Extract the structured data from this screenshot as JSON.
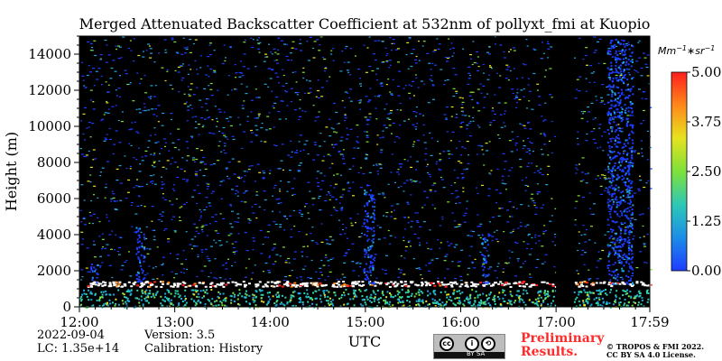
{
  "chart_data": {
    "type": "heatmap",
    "title": "Merged Attenuated Backscatter Coefficient at 532nm of pollyxt_fmi at Kuopio",
    "xlabel": "UTC",
    "ylabel": "Height (m)",
    "x_ticks": [
      "12:00",
      "13:00",
      "14:00",
      "15:00",
      "16:00",
      "17:00",
      "17:59"
    ],
    "xlim": [
      "12:00",
      "17:59"
    ],
    "y_ticks": [
      0,
      2000,
      4000,
      6000,
      8000,
      10000,
      12000,
      14000
    ],
    "ylim": [
      0,
      15000
    ],
    "colorbar": {
      "label": "Mm^-1*sr^-1",
      "ticks": [
        "0.00",
        "1.25",
        "2.50",
        "3.75",
        "5.00"
      ],
      "range": [
        0,
        5
      ],
      "colors": [
        "#1e3cff",
        "#1fa6e0",
        "#2fd0b0",
        "#7ee13a",
        "#e6e21e",
        "#ff8a1a",
        "#ff1e1e"
      ]
    },
    "features": {
      "no_data_gap": [
        "17:00",
        "17:11"
      ],
      "cloud_top_height_m": 1300,
      "boundary_layer_top_m": 1000
    }
  },
  "footer": {
    "date": "2022-09-04",
    "lc": "LC: 1.35e+14",
    "version": "Version: 3.5",
    "calibration": "Calibration: History",
    "status_line1": "Preliminary",
    "status_line2": "Results.",
    "copyright_line1": "© TROPOS & FMI 2022.",
    "copyright_line2": "CC BY SA 4.0 License.",
    "license_badge_text": "BY  SA",
    "license_badge_icon": "cc-by-sa-icon",
    "status_color": "#ff2a2a"
  }
}
